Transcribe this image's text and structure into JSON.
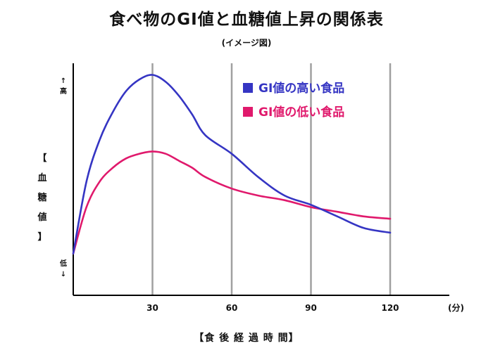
{
  "chart_data": {
    "type": "line",
    "title": "食べ物のGI値と血糖値上昇の関係表",
    "subtitle": "(イメージ図)",
    "xlabel": "【食 後 経 過 時 間】",
    "ylabel": [
      "【",
      "血",
      "糖",
      "値",
      "】"
    ],
    "x_unit": "(分)",
    "y_high_label": "↑\n高",
    "y_low_label": "低\n↓",
    "xlim": [
      0,
      135
    ],
    "ylim": [
      0,
      100
    ],
    "x_ticks": [
      30,
      60,
      90,
      120
    ],
    "x_tick_labels": [
      "30",
      "60",
      "90",
      "120"
    ],
    "grid_x": true,
    "legend_position": "top-right",
    "series": [
      {
        "name": "GI値の高い食品",
        "color": "#3535c3",
        "x": [
          0,
          5,
          10,
          15,
          20,
          25,
          30,
          35,
          40,
          45,
          50,
          60,
          70,
          80,
          90,
          100,
          110,
          120
        ],
        "y": [
          18,
          49,
          67,
          79,
          88,
          93,
          95,
          92,
          86,
          78,
          69,
          61,
          51,
          43,
          39,
          34,
          29,
          27
        ]
      },
      {
        "name": "GI値の低い食品",
        "color": "#e0196c",
        "x": [
          0,
          5,
          10,
          15,
          20,
          25,
          30,
          35,
          40,
          45,
          50,
          60,
          70,
          80,
          90,
          100,
          110,
          120
        ],
        "y": [
          18,
          38,
          49,
          55,
          59,
          61,
          62,
          61,
          58,
          55,
          51,
          46,
          43,
          41,
          38,
          36,
          34,
          33
        ]
      }
    ]
  }
}
